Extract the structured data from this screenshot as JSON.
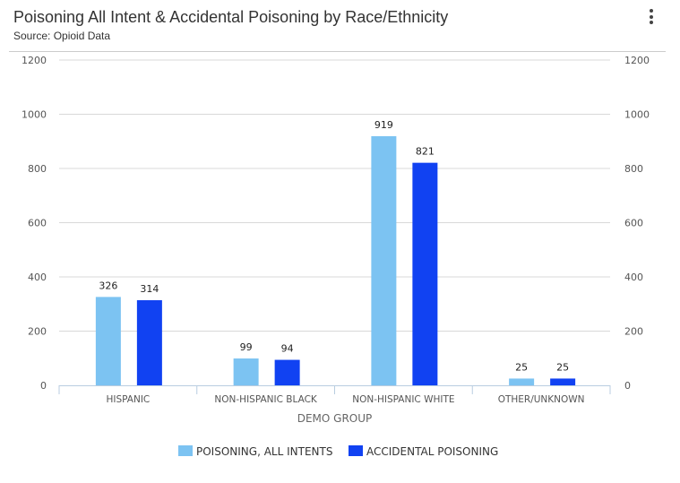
{
  "title": "Poisoning All Intent & Accidental Poisoning by Race/Ethnicity",
  "subtitle": "Source: Opioid Data",
  "menu_icon": "more-vertical-icon",
  "chart_data": {
    "type": "bar",
    "title": "Poisoning All Intent & Accidental Poisoning by Race/Ethnicity",
    "xlabel": "DEMO GROUP",
    "ylabel": "",
    "ylim": [
      0,
      1200
    ],
    "yticks": [
      "0",
      "200",
      "400",
      "600",
      "800",
      "1000",
      "1200"
    ],
    "grid": true,
    "legend": "bottom",
    "categories": [
      "HISPANIC",
      "NON-HISPANIC BLACK",
      "NON-HISPANIC WHITE",
      "OTHER/UNKNOWN"
    ],
    "series": [
      {
        "name": "POISONING, ALL INTENTS",
        "color": "#7cc3f2",
        "values": [
          326,
          99,
          919,
          25
        ]
      },
      {
        "name": "ACCIDENTAL POISONING",
        "color": "#1142f2",
        "values": [
          314,
          94,
          821,
          25
        ]
      }
    ]
  }
}
